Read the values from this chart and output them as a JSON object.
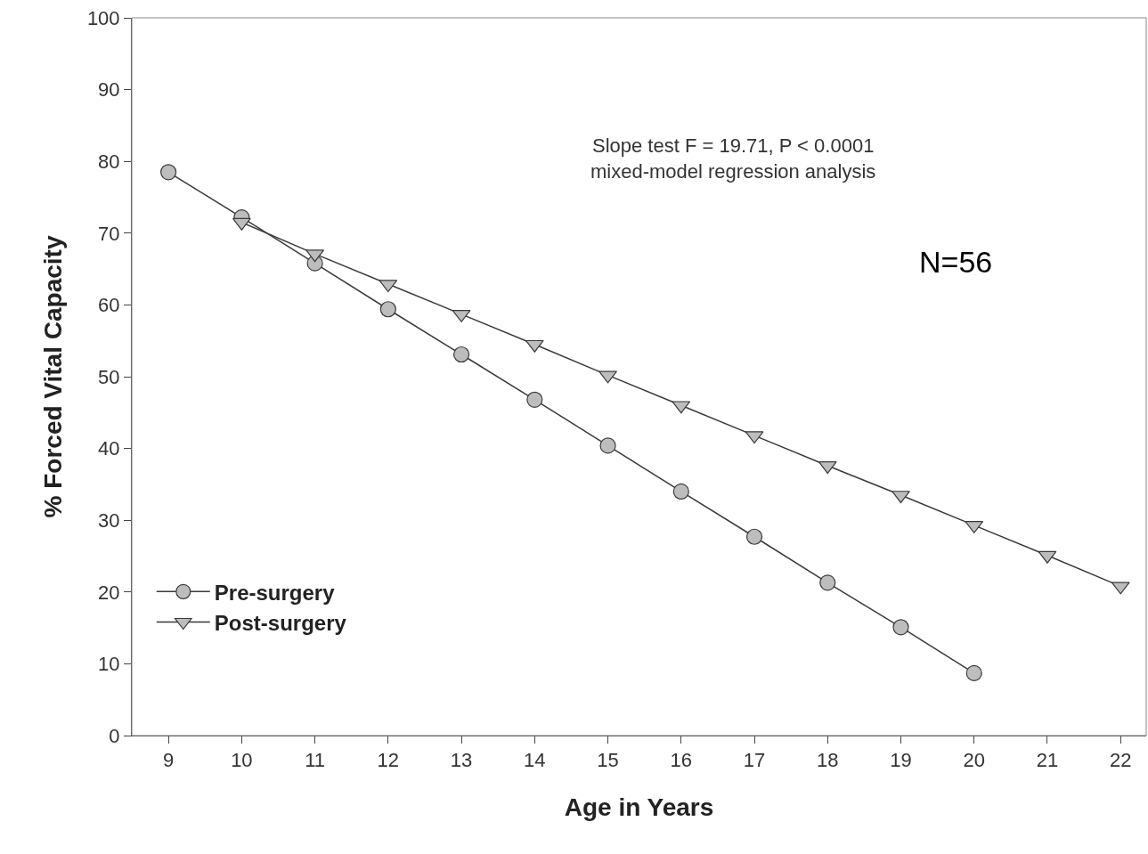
{
  "chart_data": {
    "type": "line",
    "xlabel": "Age in Years",
    "ylabel": "% Forced Vital Capacity",
    "xlim": [
      8.5,
      22.35
    ],
    "xticks": [
      9,
      10,
      11,
      12,
      13,
      14,
      15,
      16,
      17,
      18,
      19,
      20,
      21,
      22
    ],
    "ylim": [
      0,
      100
    ],
    "yticks": [
      0,
      10,
      20,
      30,
      40,
      50,
      60,
      70,
      80,
      90,
      100
    ],
    "grid": false,
    "legend": "bottom left",
    "annotations": [
      "Slope test F = 19.71, P < 0.0001\nmixed-model regression analysis",
      "N=56"
    ],
    "series": [
      {
        "name": "Pre-surgery",
        "color": "#3a3a3a",
        "marker": "circle",
        "x": [
          9,
          10,
          11,
          12,
          13,
          14,
          15,
          16,
          17,
          18,
          19,
          20
        ],
        "values": [
          78.5,
          72.2,
          65.8,
          59.4,
          53.1,
          46.8,
          40.4,
          34.0,
          27.7,
          21.3,
          15.1,
          8.7
        ]
      },
      {
        "name": "Post-surgery",
        "color": "#3a3a3a",
        "marker": "triangle",
        "x": [
          10,
          11,
          12,
          13,
          14,
          15,
          16,
          17,
          18,
          19,
          20,
          21,
          22
        ],
        "values": [
          71.5,
          67.1,
          62.9,
          58.7,
          54.5,
          50.2,
          46.0,
          41.8,
          37.6,
          33.5,
          29.3,
          25.1,
          20.8
        ]
      }
    ]
  }
}
